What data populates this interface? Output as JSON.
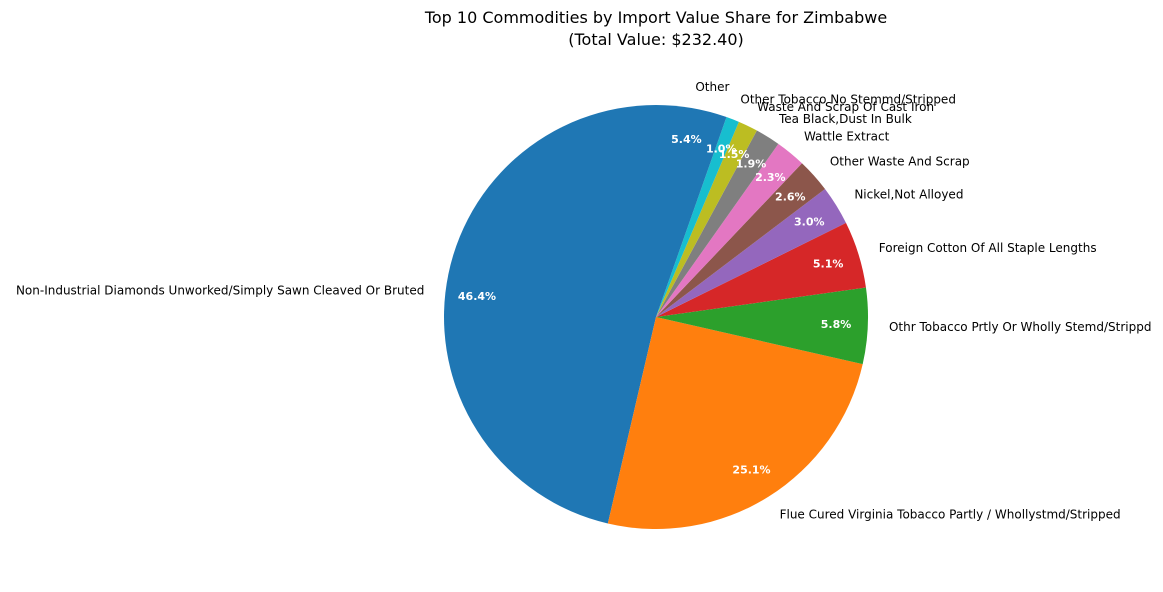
{
  "chart_data": {
    "type": "pie",
    "title": "Top 10 Commodities by Import Value Share for Zimbabwe",
    "subtitle": "(Total Value: $232.40)",
    "start_angle_deg": 90,
    "direction": "counterclockwise",
    "slices": [
      {
        "label": "Non-Industrial Diamonds Unworked/Simply Sawn Cleaved Or Bruted",
        "value": 46.4,
        "pct_label": "46.4%",
        "color": "#1f77b4"
      },
      {
        "label": "Flue Cured Virginia Tobacco Partly / Whollystmd/Stripped",
        "value": 25.1,
        "pct_label": "25.1%",
        "color": "#ff7f0e"
      },
      {
        "label": "Othr Tobacco Prtly Or Wholly Stemd/Strippd",
        "value": 5.8,
        "pct_label": "5.8%",
        "color": "#2ca02c"
      },
      {
        "label": "Foreign Cotton Of All Staple Lengths",
        "value": 5.1,
        "pct_label": "5.1%",
        "color": "#d62728"
      },
      {
        "label": "Nickel,Not Alloyed",
        "value": 3.0,
        "pct_label": "3.0%",
        "color": "#9467bd"
      },
      {
        "label": "Other Waste And Scrap",
        "value": 2.6,
        "pct_label": "2.6%",
        "color": "#8c564b"
      },
      {
        "label": "Wattle Extract",
        "value": 2.3,
        "pct_label": "2.3%",
        "color": "#e377c2"
      },
      {
        "label": "Tea Black,Dust In Bulk",
        "value": 1.9,
        "pct_label": "1.9%",
        "color": "#7f7f7f"
      },
      {
        "label": "Waste And Scrap Of Cast Iron",
        "value": 1.5,
        "pct_label": "1.5%",
        "color": "#bcbd22"
      },
      {
        "label": "Other Tobacco No Stemmd/Stripped",
        "value": 1.0,
        "pct_label": "1.0%",
        "color": "#17becf"
      },
      {
        "label": "Other",
        "value": 5.4,
        "pct_label": "5.4%",
        "color": "#1f77b4"
      }
    ]
  }
}
